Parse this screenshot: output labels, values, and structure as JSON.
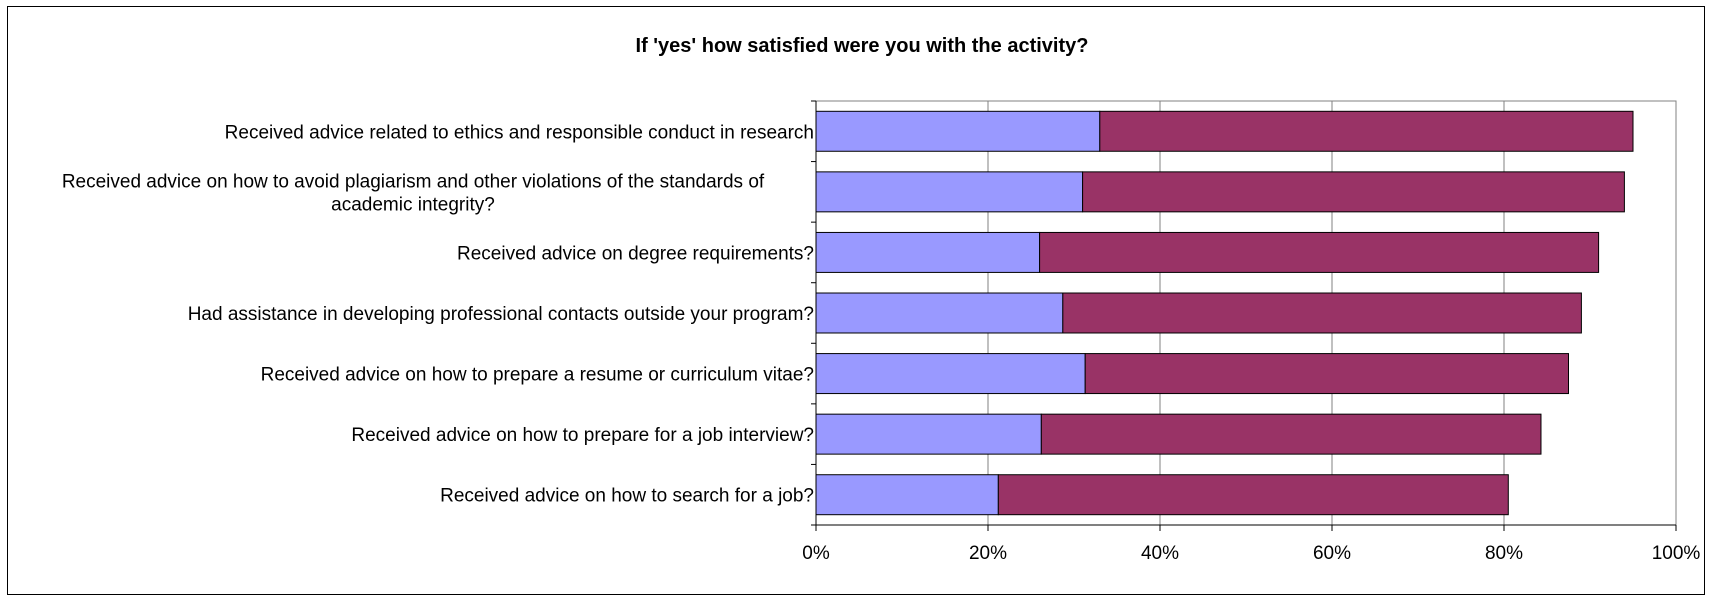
{
  "chart_data": {
    "type": "bar",
    "orientation": "horizontal",
    "stacked": true,
    "title": "If 'yes' how satisfied were you with the activity?",
    "categories": [
      [
        "Received advice related to ethics and responsible conduct in research"
      ],
      [
        "Received advice on how to avoid plagiarism and other violations of the standards of",
        "academic integrity?"
      ],
      [
        "Received advice on degree requirements?"
      ],
      [
        "Had assistance in developing professional contacts outside your program?"
      ],
      [
        "Received advice on how to prepare a resume or curriculum vitae?"
      ],
      [
        "Received advice on how to prepare for a job interview?"
      ],
      [
        "Received advice on how to search for a job?"
      ]
    ],
    "series": [
      {
        "values": [
          33,
          31,
          26,
          28.7,
          31.3,
          26.2,
          21.2
        ]
      },
      {
        "values": [
          62,
          63,
          65,
          60.3,
          56.2,
          58.1,
          59.3
        ]
      }
    ],
    "colors": [
      "#9999ff",
      "#993366"
    ],
    "xlim": [
      0,
      100
    ],
    "x_ticks": [
      "0%",
      "20%",
      "40%",
      "60%",
      "80%",
      "100%"
    ],
    "xlabel": "",
    "ylabel": "",
    "grid": "vertical",
    "legend": "none"
  }
}
